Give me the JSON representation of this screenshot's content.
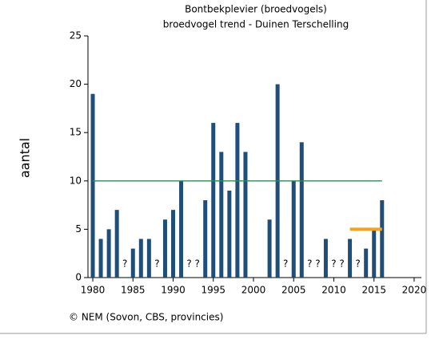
{
  "chart_data": {
    "type": "bar",
    "title": "Bontbekplevier (broedvogels)",
    "subtitle": "broedvogel trend - Duinen Terschelling",
    "y_label": "aantal",
    "footer": "© NEM (Sovon, CBS, provincies)",
    "x": [
      1980,
      1981,
      1982,
      1983,
      1984,
      1985,
      1986,
      1987,
      1988,
      1989,
      1990,
      1991,
      1992,
      1993,
      1994,
      1995,
      1996,
      1997,
      1998,
      1999,
      2000,
      2001,
      2002,
      2003,
      2004,
      2005,
      2006,
      2007,
      2008,
      2009,
      2010,
      2011,
      2012,
      2013,
      2014,
      2015,
      2016
    ],
    "values": [
      19,
      4,
      5,
      7,
      null,
      3,
      4,
      4,
      null,
      6,
      7,
      10,
      null,
      null,
      8,
      16,
      13,
      9,
      16,
      13,
      null,
      null,
      6,
      20,
      null,
      10,
      14,
      null,
      null,
      4,
      null,
      null,
      4,
      null,
      3,
      5,
      8
    ],
    "value_labels": [
      null,
      null,
      null,
      null,
      "?",
      null,
      null,
      null,
      "?",
      null,
      null,
      null,
      "?",
      "?",
      null,
      null,
      null,
      null,
      null,
      null,
      null,
      null,
      null,
      null,
      "?",
      null,
      null,
      "?",
      "?",
      null,
      "?",
      "?",
      null,
      "?",
      null,
      null,
      null
    ],
    "color": "#1f4e79",
    "reference_line": {
      "value": 10,
      "from": 1980,
      "to": 2016,
      "color": "#2e8b57"
    },
    "trend_line": {
      "value": 5,
      "from": 2012,
      "to": 2016,
      "color": "#f5a31a"
    },
    "xlim": [
      1979.4,
      2020.9
    ],
    "xticks": [
      1980,
      1985,
      1990,
      1995,
      2000,
      2005,
      2010,
      2015,
      2020
    ],
    "ylim": [
      0,
      25
    ],
    "yticks": [
      0,
      5,
      10,
      15,
      20,
      25
    ]
  }
}
